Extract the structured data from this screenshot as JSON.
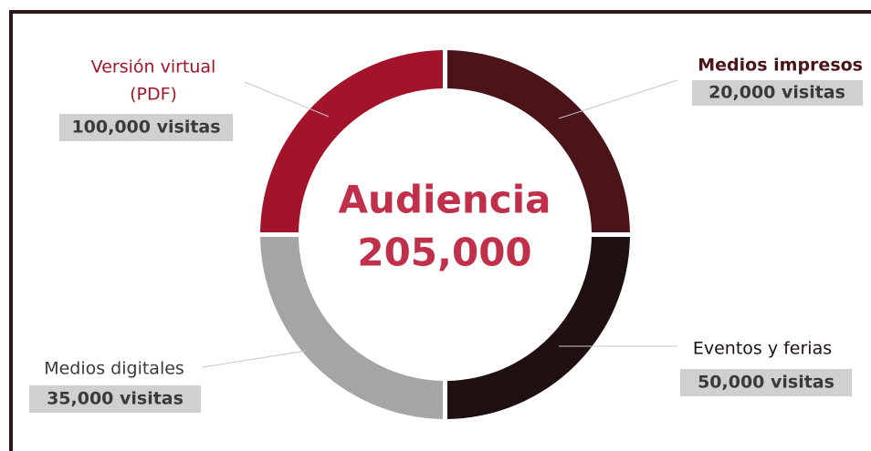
{
  "center": {
    "title": "Audiencia",
    "total": "205,000"
  },
  "segments": [
    {
      "label": [
        "Versión virtual",
        "(PDF)"
      ],
      "value_label": "100,000 visitas"
    },
    {
      "label": [
        "Medios impresos"
      ],
      "value_label": "20,000 visitas"
    },
    {
      "label": [
        "Eventos y ferias"
      ],
      "value_label": "50,000 visitas"
    },
    {
      "label": [
        "Medios digitales"
      ],
      "value_label": "35,000 visitas"
    }
  ]
}
